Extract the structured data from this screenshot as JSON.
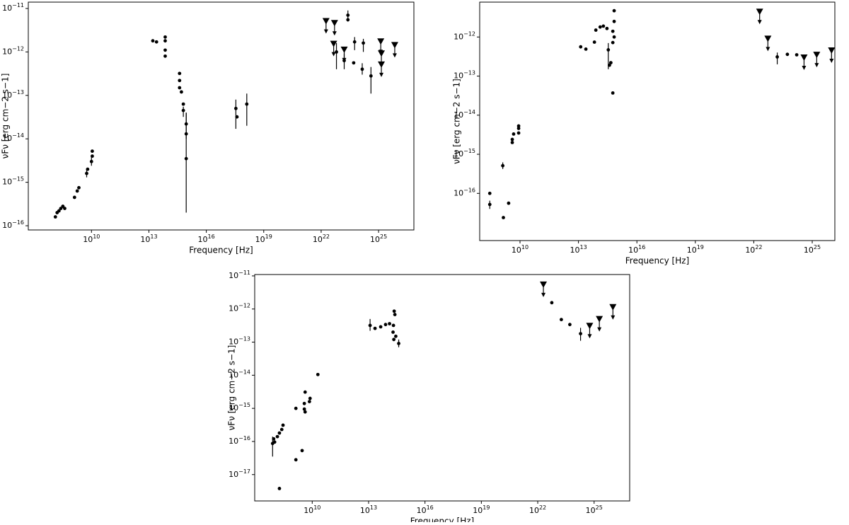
{
  "chart_data": [
    {
      "type": "scatter",
      "xlabel": "Frequency [Hz]",
      "ylabel": "νFν [erg cm−2 s−1]",
      "log_x": true,
      "log_y": true,
      "color": "#000000",
      "xlim": [
        5000000.0,
        7e+26
      ],
      "ylim": [
        8e-17,
        1.4e-11
      ],
      "xticks": [
        {
          "value": 10000000000.0,
          "label": "10",
          "sup": "10"
        },
        {
          "value": 10000000000000.0,
          "label": "10",
          "sup": "13"
        },
        {
          "value": 1e+16,
          "label": "10",
          "sup": "16"
        },
        {
          "value": 1e+19,
          "label": "10",
          "sup": "19"
        },
        {
          "value": 1e+22,
          "label": "10",
          "sup": "22"
        },
        {
          "value": 1e+25,
          "label": "10",
          "sup": "25"
        }
      ],
      "yticks": [
        {
          "value": 1e-16,
          "label": "10",
          "sup": "−16"
        },
        {
          "value": 1e-15,
          "label": "10",
          "sup": "−15"
        },
        {
          "value": 1e-14,
          "label": "10",
          "sup": "−14"
        },
        {
          "value": 1e-13,
          "label": "10",
          "sup": "−13"
        },
        {
          "value": 1e-12,
          "label": "10",
          "sup": "−12"
        },
        {
          "value": 1e-11,
          "label": "10",
          "sup": "−11"
        }
      ],
      "series": [
        {
          "marker": "circle",
          "x": [
            130000000.0,
            160000000.0,
            200000000.0,
            250000000.0,
            320000000.0,
            400000000.0,
            1300000000.0,
            1800000000.0,
            2200000000.0,
            5600000000.0,
            6300000000.0,
            10000000000.0,
            11000000000.0,
            11000000000.0,
            16000000000000.0,
            25000000000000.0,
            71000000000000.0,
            71000000000000.0,
            71000000000000.0,
            71000000000000.0,
            400000000000000.0,
            400000000000000.0,
            400000000000000.0,
            500000000000000.0,
            630000000000000.0,
            630000000000000.0,
            890000000000000.0,
            890000000000000.0,
            890000000000000.0,
            3.5e+17,
            4e+17,
            1.3e+18,
            2.5e+23,
            2.5e+23,
            6.3e+22,
            1.6e+23,
            5e+23,
            5.6e+23,
            1.4e+24,
            1.6e+24,
            4e+24
          ],
          "y": [
            1.6e-16,
            2e-16,
            2.2e-16,
            2.5e-16,
            2.8e-16,
            2.5e-16,
            4.5e-16,
            6.3e-16,
            7.5e-16,
            1.6e-15,
            2e-15,
            3e-15,
            4e-15,
            5.2e-15,
            1.8e-12,
            1.7e-12,
            2.2e-12,
            1.8e-12,
            1.1e-12,
            8e-13,
            3.2e-13,
            2.2e-13,
            1.5e-13,
            1.2e-13,
            6.3e-14,
            4.5e-14,
            2.2e-14,
            1.3e-14,
            3.5e-15,
            5e-14,
            3.2e-14,
            6.3e-14,
            7e-12,
            5.5e-12,
            1e-12,
            6.3e-13,
            5.6e-13,
            1.7e-12,
            4e-13,
            1.6e-12,
            2.8e-13
          ],
          "y_low": [
            null,
            null,
            null,
            null,
            null,
            null,
            null,
            null,
            null,
            1.3e-15,
            null,
            2.4e-15,
            null,
            null,
            null,
            null,
            null,
            null,
            null,
            null,
            null,
            null,
            null,
            null,
            null,
            3.2e-14,
            1e-14,
            null,
            2e-16,
            1.7e-14,
            null,
            2e-14,
            5e-12,
            null,
            4e-13,
            4e-13,
            null,
            1.1e-12,
            3e-13,
            1e-12,
            1.1e-13
          ],
          "y_high": [
            null,
            null,
            null,
            null,
            null,
            null,
            null,
            null,
            null,
            2e-15,
            null,
            3.8e-15,
            null,
            null,
            null,
            null,
            null,
            null,
            null,
            null,
            null,
            null,
            null,
            null,
            null,
            5.5e-14,
            4e-14,
            null,
            4e-14,
            8e-14,
            null,
            1.1e-13,
            9e-12,
            null,
            1.6e-12,
            9e-13,
            null,
            2.2e-12,
            5.5e-13,
            2e-12,
            4.5e-13
          ]
        },
        {
          "marker": "upper-limit",
          "x": [
            1.8e+22,
            5e+22,
            4.5e+22,
            1.6e+23,
            1.3e+25,
            1.4e+25,
            1.4e+25,
            7e+25
          ],
          "y": [
            5e-12,
            4.5e-12,
            1.5e-12,
            1.1e-12,
            1.7e-12,
            9e-13,
            5e-13,
            1.4e-12
          ]
        }
      ]
    },
    {
      "type": "scatter",
      "xlabel": "Frequency [Hz]",
      "ylabel": "νFν [erg cm−2 s−1]",
      "log_x": true,
      "log_y": true,
      "color": "#000000",
      "xlim": [
        85000000.0,
        1.45e+26
      ],
      "ylim": [
        6.2e-18,
        7.8e-12
      ],
      "xticks": [
        {
          "value": 10000000000.0,
          "label": "10",
          "sup": "10"
        },
        {
          "value": 10000000000000.0,
          "label": "10",
          "sup": "13"
        },
        {
          "value": 1e+16,
          "label": "10",
          "sup": "16"
        },
        {
          "value": 1e+19,
          "label": "10",
          "sup": "19"
        },
        {
          "value": 1e+22,
          "label": "10",
          "sup": "22"
        },
        {
          "value": 1e+25,
          "label": "10",
          "sup": "25"
        }
      ],
      "yticks": [
        {
          "value": 1e-16,
          "label": "10",
          "sup": "−16"
        },
        {
          "value": 1e-15,
          "label": "10",
          "sup": "−15"
        },
        {
          "value": 1e-14,
          "label": "10",
          "sup": "−14"
        },
        {
          "value": 1e-13,
          "label": "10",
          "sup": "−13"
        },
        {
          "value": 1e-12,
          "label": "10",
          "sup": "−12"
        }
      ],
      "series": [
        {
          "marker": "circle",
          "x": [
            280000000.0,
            280000000.0,
            1300000000.0,
            1400000000.0,
            2600000000.0,
            4000000000.0,
            4000000000.0,
            4700000000.0,
            8500000000.0,
            8500000000.0,
            8500000000.0,
            13000000000000.0,
            24000000000000.0,
            66000000000000.0,
            78000000000000.0,
            130000000000000.0,
            190000000000000.0,
            290000000000000.0,
            340000000000000.0,
            390000000000000.0,
            460000000000000.0,
            580000000000000.0,
            580000000000000.0,
            580000000000000.0,
            680000000000000.0,
            680000000000000.0,
            680000000000000.0,
            1.6e+23,
            5.3e+23,
            1.6e+24
          ],
          "y": [
            1e-16,
            5.2e-17,
            5.1e-16,
            2.4e-17,
            5.6e-17,
            2.4e-15,
            2e-15,
            3.3e-15,
            3.5e-15,
            4.6e-15,
            5.3e-15,
            5.6e-13,
            4.9e-13,
            7.4e-13,
            1.5e-12,
            1.8e-12,
            1.9e-12,
            1.65e-12,
            4.7e-13,
            1.9e-13,
            2.2e-13,
            1.4e-12,
            7.2e-13,
            3.7e-14,
            2.5e-12,
            4.7e-12,
            1e-12,
            3.1e-13,
            3.6e-13,
            3.5e-13
          ],
          "y_low": [
            null,
            4e-17,
            4.2e-16,
            null,
            null,
            null,
            null,
            null,
            null,
            null,
            null,
            null,
            null,
            null,
            null,
            null,
            null,
            null,
            1.5e-13,
            null,
            null,
            null,
            null,
            null,
            null,
            null,
            null,
            2e-13,
            null,
            null
          ],
          "y_high": [
            null,
            6.5e-17,
            6.2e-16,
            null,
            null,
            null,
            null,
            null,
            null,
            null,
            null,
            null,
            null,
            null,
            null,
            null,
            null,
            null,
            7e-13,
            null,
            null,
            null,
            null,
            null,
            null,
            null,
            null,
            4e-13,
            null,
            null
          ]
        },
        {
          "marker": "upper-limit",
          "x": [
            2e+22,
            5.3e+22,
            3.8e+24,
            1.7e+25,
            9.8e+25
          ],
          "y": [
            4.3e-12,
            8.8e-13,
            2.9e-13,
            3.4e-13,
            4.4e-13
          ]
        }
      ]
    },
    {
      "type": "scatter",
      "xlabel": "Frequency [Hz]",
      "ylabel": "νFν [erg cm−2 s−1]",
      "log_x": true,
      "log_y": true,
      "color": "#000000",
      "xlim": [
        8700000.0,
        7.8e+26
      ],
      "ylim": [
        1.6e-18,
        1.1e-11
      ],
      "xticks": [
        {
          "value": 10000000000.0,
          "label": "10",
          "sup": "10"
        },
        {
          "value": 10000000000000.0,
          "label": "10",
          "sup": "13"
        },
        {
          "value": 1e+16,
          "label": "10",
          "sup": "16"
        },
        {
          "value": 1e+19,
          "label": "10",
          "sup": "19"
        },
        {
          "value": 1e+22,
          "label": "10",
          "sup": "22"
        },
        {
          "value": 1e+25,
          "label": "10",
          "sup": "25"
        }
      ],
      "yticks": [
        {
          "value": 1e-17,
          "label": "10",
          "sup": "−17"
        },
        {
          "value": 1e-16,
          "label": "10",
          "sup": "−16"
        },
        {
          "value": 1e-15,
          "label": "10",
          "sup": "−15"
        },
        {
          "value": 1e-14,
          "label": "10",
          "sup": "−14"
        },
        {
          "value": 1e-13,
          "label": "10",
          "sup": "−13"
        },
        {
          "value": 1e-12,
          "label": "10",
          "sup": "−12"
        },
        {
          "value": 1e-11,
          "label": "10",
          "sup": "−11"
        }
      ],
      "series": [
        {
          "marker": "circle",
          "x": [
            78000000.0,
            89000000.0,
            100000000.0,
            140000000.0,
            180000000.0,
            240000000.0,
            280000000.0,
            180000000.0,
            1350000000.0,
            2900000000.0,
            1350000000.0,
            3800000000.0,
            3800000000.0,
            4200000000.0,
            7100000000.0,
            7700000000.0,
            20000000000.0,
            4200000000.0,
            12000000000000.0,
            22000000000000.0,
            44000000000000.0,
            80000000000000.0,
            130000000000000.0,
            210000000000000.0,
            230000000000000.0,
            250000000000000.0,
            200000000000000.0,
            220000000000000.0,
            280000000000000.0,
            400000000000000.0,
            5.6e+22,
            1.8e+23,
            5.1e+23,
            1.9e+24
          ],
          "y": [
            8.7e-17,
            1.2e-16,
            9.6e-17,
            1.4e-16,
            1.8e-16,
            2.3e-16,
            3.1e-16,
            3.8e-18,
            2.8e-17,
            5.3e-17,
            1e-15,
            9.5e-16,
            1.4e-15,
            7.8e-16,
            1.6e-15,
            2e-15,
            1.05e-14,
            3.1e-15,
            3.2e-13,
            2.6e-13,
            2.9e-13,
            3.4e-13,
            3.6e-13,
            3.2e-13,
            8.6e-13,
            6.8e-13,
            2e-13,
            1.2e-13,
            1.5e-13,
            9.1e-14,
            1.55e-12,
            4.8e-13,
            3.4e-13,
            1.8e-13
          ],
          "y_low": [
            3.5e-17,
            null,
            null,
            null,
            null,
            null,
            null,
            null,
            null,
            null,
            null,
            null,
            null,
            null,
            null,
            null,
            null,
            null,
            2.2e-13,
            null,
            null,
            null,
            null,
            null,
            null,
            null,
            null,
            null,
            null,
            7e-14,
            null,
            null,
            null,
            1.1e-13
          ],
          "y_high": [
            1.4e-16,
            null,
            null,
            null,
            null,
            null,
            null,
            null,
            null,
            null,
            null,
            null,
            null,
            null,
            null,
            null,
            null,
            null,
            5e-13,
            null,
            null,
            null,
            null,
            null,
            null,
            null,
            null,
            null,
            null,
            1.2e-13,
            null,
            null,
            null,
            2.7e-13
          ]
        },
        {
          "marker": "upper-limit",
          "x": [
            2e+22,
            5.8e+24,
            1.9e+25,
            1e+26
          ],
          "y": [
            5.3e-12,
            3e-13,
            4.8e-13,
            1.1e-12
          ]
        }
      ]
    }
  ]
}
